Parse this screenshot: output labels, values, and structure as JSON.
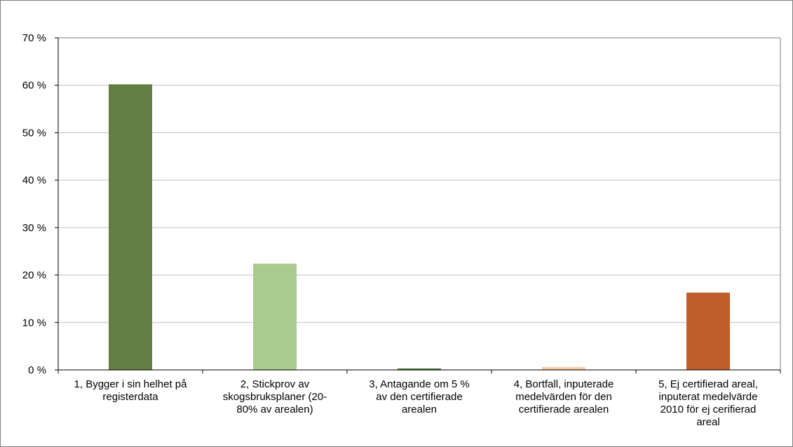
{
  "chart_data": {
    "type": "bar",
    "title": "",
    "xlabel": "",
    "ylabel": "",
    "ylim": [
      0,
      70
    ],
    "yticks": [
      0,
      10,
      20,
      30,
      40,
      50,
      60,
      70
    ],
    "ytick_labels": [
      "0 %",
      "10 %",
      "20 %",
      "30 %",
      "40 %",
      "50 %",
      "60 %",
      "70 %"
    ],
    "grid": true,
    "legend": "none",
    "categories": [
      "1, Bygger i sin helhet på\nregisterdata",
      "2, Stickprov av\nskogsbruksplaner (20-\n80% av arealen)",
      "3, Antagande om 5 %\nav den certifierade\narealen",
      "4, Bortfall, inputerade\nmedelvärden för den\ncertifierade arealen",
      "5, Ej certifierad areal,\ninputerat medelvärde\n2010 för ej cerifierad\nareal"
    ],
    "values": [
      60.2,
      22.4,
      0.3,
      0.6,
      16.3
    ],
    "colors": [
      "#637d43",
      "#a9cb8d",
      "#3f6e31",
      "#f4c9a7",
      "#c05e2b"
    ]
  }
}
